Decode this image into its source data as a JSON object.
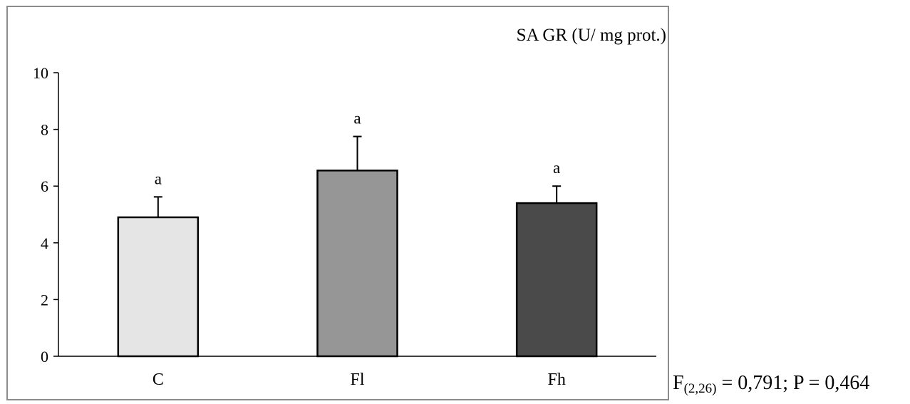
{
  "chart_data": {
    "type": "bar",
    "categories": [
      "C",
      "Fl",
      "Fh"
    ],
    "values": [
      4.9,
      6.55,
      5.4
    ],
    "errors": [
      0.72,
      1.2,
      0.6
    ],
    "letters": [
      "a",
      "a",
      "a"
    ],
    "bar_colors": [
      "#e5e5e5",
      "#969696",
      "#4a4a4a"
    ],
    "ylabel": "SA GR (U/ mg prot.)",
    "ylim": [
      0,
      10
    ],
    "yticks": [
      "0",
      "2",
      "4",
      "6",
      "8",
      "10"
    ],
    "grid": false
  },
  "stats": {
    "f_prefix": "F",
    "df": "(2,26)",
    "rest": " = 0,791; P = 0,464"
  }
}
